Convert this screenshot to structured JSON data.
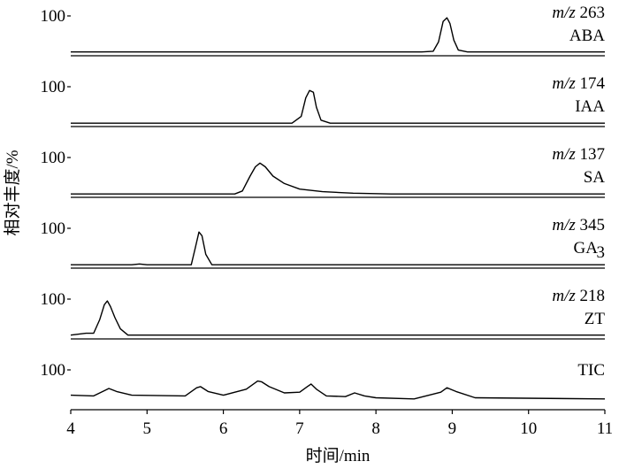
{
  "chart_data": {
    "type": "line",
    "xlabel": "时间/min",
    "ylabel": "相对丰度/%",
    "xlim": [
      4,
      11
    ],
    "ylim": [
      0,
      100
    ],
    "x_ticks": [
      "4",
      "5",
      "6",
      "7",
      "8",
      "9",
      "10",
      "11"
    ],
    "y_tick_label": "100",
    "grid": false,
    "panels": [
      {
        "mz_prefix": "m/z",
        "mz_value": "263",
        "compound": "ABA",
        "compound_sub": "",
        "series": {
          "x": [
            4.0,
            8.6,
            8.75,
            8.82,
            8.88,
            8.93,
            8.97,
            9.02,
            9.08,
            9.2,
            11.0
          ],
          "y": [
            3,
            3,
            5,
            30,
            85,
            95,
            80,
            35,
            8,
            3,
            3
          ]
        }
      },
      {
        "mz_prefix": "m/z",
        "mz_value": "174",
        "compound": "IAA",
        "compound_sub": "",
        "series": {
          "x": [
            4.0,
            6.9,
            7.02,
            7.08,
            7.13,
            7.18,
            7.22,
            7.28,
            7.4,
            11.0
          ],
          "y": [
            2,
            2,
            20,
            70,
            90,
            85,
            45,
            10,
            2,
            2
          ]
        }
      },
      {
        "mz_prefix": "m/z",
        "mz_value": "137",
        "compound": "SA",
        "compound_sub": "",
        "series": {
          "x": [
            4.0,
            6.15,
            6.25,
            6.35,
            6.42,
            6.48,
            6.55,
            6.65,
            6.8,
            7.0,
            7.3,
            7.7,
            8.2,
            11.0
          ],
          "y": [
            2,
            2,
            10,
            50,
            75,
            85,
            75,
            50,
            30,
            15,
            8,
            4,
            2,
            2
          ]
        }
      },
      {
        "mz_prefix": "m/z",
        "mz_value": "345",
        "compound": "GA",
        "compound_sub": "3",
        "series": {
          "x": [
            4.0,
            4.8,
            4.9,
            5.0,
            5.58,
            5.63,
            5.68,
            5.72,
            5.77,
            5.85,
            11.0
          ],
          "y": [
            2,
            2,
            4,
            2,
            2,
            45,
            90,
            80,
            30,
            2,
            2
          ]
        }
      },
      {
        "mz_prefix": "m/z",
        "mz_value": "218",
        "compound": "ZT",
        "compound_sub": "",
        "series": {
          "x": [
            4.0,
            4.2,
            4.3,
            4.38,
            4.44,
            4.48,
            4.52,
            4.58,
            4.65,
            4.75,
            11.0
          ],
          "y": [
            3,
            8,
            8,
            45,
            85,
            95,
            80,
            50,
            20,
            3,
            3
          ]
        }
      },
      {
        "mz_prefix": "",
        "mz_value": "",
        "compound": "TIC",
        "compound_sub": "",
        "series": {
          "x": [
            4.0,
            4.3,
            4.45,
            4.5,
            4.6,
            4.8,
            5.5,
            5.65,
            5.7,
            5.8,
            6.0,
            6.3,
            6.45,
            6.5,
            6.6,
            6.8,
            7.0,
            7.1,
            7.15,
            7.22,
            7.35,
            7.6,
            7.72,
            7.85,
            8.0,
            8.5,
            8.85,
            8.93,
            9.05,
            9.3,
            11.0
          ],
          "y": [
            32,
            30,
            45,
            50,
            42,
            32,
            30,
            52,
            55,
            42,
            32,
            48,
            70,
            68,
            55,
            38,
            40,
            55,
            62,
            48,
            30,
            28,
            38,
            30,
            25,
            22,
            40,
            52,
            42,
            25,
            22
          ]
        }
      }
    ]
  }
}
